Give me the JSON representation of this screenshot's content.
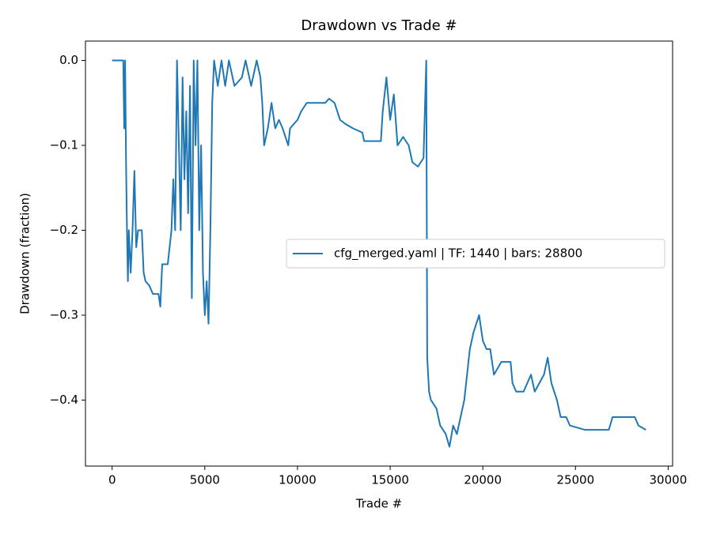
{
  "chart_data": {
    "type": "line",
    "title": "Drawdown vs Trade #",
    "x_label": "Trade #",
    "y_label": "Drawdown (fraction)",
    "legend_position": "center right",
    "xlim": [
      -1440,
      30240
    ],
    "xticks": [
      0,
      5000,
      10000,
      15000,
      20000,
      25000,
      30000
    ],
    "ylim": [
      -0.4777,
      0.0228
    ],
    "yticks": [
      {
        "value": -0.4,
        "label": "−0.4"
      },
      {
        "value": -0.3,
        "label": "−0.3"
      },
      {
        "value": -0.2,
        "label": "−0.2"
      },
      {
        "value": -0.1,
        "label": "−0.1"
      },
      {
        "value": 0,
        "label": "0.0"
      }
    ],
    "series": [
      {
        "name": "cfg_merged.yaml | TF: 1440 | bars: 28800",
        "color": "#1f77b4",
        "x": [
          0,
          600,
          650,
          700,
          750,
          800,
          850,
          900,
          1000,
          1100,
          1200,
          1300,
          1400,
          1600,
          1700,
          1800,
          2000,
          2200,
          2500,
          2600,
          2700,
          3000,
          3200,
          3300,
          3400,
          3500,
          3600,
          3700,
          3800,
          3900,
          4000,
          4100,
          4200,
          4300,
          4400,
          4500,
          4600,
          4700,
          4800,
          4900,
          5000,
          5100,
          5200,
          5300,
          5400,
          5500,
          5700,
          5900,
          6100,
          6300,
          6600,
          7000,
          7200,
          7500,
          7800,
          8000,
          8100,
          8200,
          8400,
          8600,
          8800,
          9000,
          9200,
          9500,
          9600,
          10000,
          10200,
          10500,
          11500,
          11700,
          12000,
          12300,
          12600,
          13000,
          13500,
          13600,
          14500,
          14600,
          14800,
          15000,
          15200,
          15400,
          15700,
          16000,
          16200,
          16500,
          16800,
          16950,
          17000,
          17100,
          17200,
          17500,
          17700,
          18000,
          18200,
          18400,
          18600,
          19000,
          19300,
          19500,
          19800,
          20000,
          20200,
          20400,
          20600,
          21000,
          21500,
          21600,
          21800,
          22200,
          22600,
          22800,
          23300,
          23500,
          23700,
          24000,
          24200,
          24500,
          24700,
          25500,
          26800,
          27000,
          28200,
          28400,
          28800
        ],
        "values": [
          0,
          0,
          -0.08,
          0,
          -0.12,
          -0.2,
          -0.26,
          -0.2,
          -0.25,
          -0.2,
          -0.13,
          -0.22,
          -0.2,
          -0.2,
          -0.25,
          -0.26,
          -0.265,
          -0.275,
          -0.275,
          -0.29,
          -0.24,
          -0.24,
          -0.2,
          -0.14,
          -0.2,
          0,
          -0.1,
          -0.2,
          -0.02,
          -0.14,
          -0.06,
          -0.18,
          -0.03,
          -0.28,
          0,
          -0.1,
          0,
          -0.2,
          -0.1,
          -0.25,
          -0.3,
          -0.26,
          -0.31,
          -0.2,
          -0.05,
          0,
          -0.03,
          0,
          -0.03,
          0,
          -0.03,
          -0.02,
          0,
          -0.03,
          0,
          -0.02,
          -0.05,
          -0.1,
          -0.08,
          -0.05,
          -0.08,
          -0.07,
          -0.08,
          -0.1,
          -0.08,
          -0.07,
          -0.06,
          -0.05,
          -0.05,
          -0.045,
          -0.05,
          -0.07,
          -0.075,
          -0.08,
          -0.085,
          -0.095,
          -0.095,
          -0.06,
          -0.02,
          -0.07,
          -0.04,
          -0.1,
          -0.09,
          -0.1,
          -0.12,
          -0.125,
          -0.115,
          0,
          -0.35,
          -0.39,
          -0.4,
          -0.41,
          -0.43,
          -0.44,
          -0.455,
          -0.43,
          -0.44,
          -0.4,
          -0.34,
          -0.32,
          -0.3,
          -0.33,
          -0.34,
          -0.34,
          -0.37,
          -0.355,
          -0.355,
          -0.38,
          -0.39,
          -0.39,
          -0.37,
          -0.39,
          -0.37,
          -0.35,
          -0.38,
          -0.4,
          -0.42,
          -0.42,
          -0.43,
          -0.435,
          -0.435,
          -0.42,
          -0.42,
          -0.43,
          -0.435
        ]
      }
    ]
  }
}
